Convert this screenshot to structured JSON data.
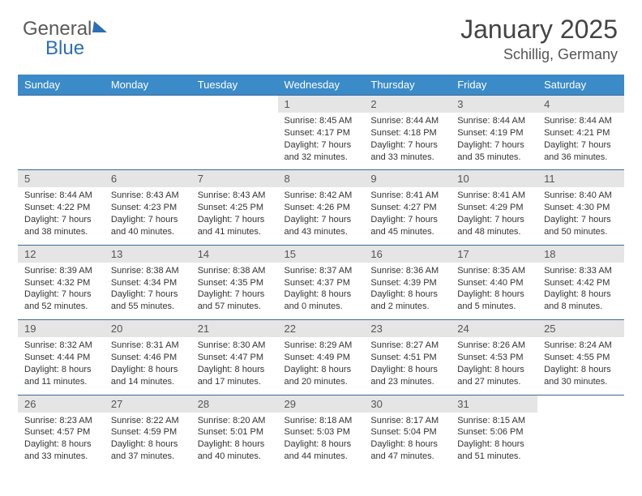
{
  "brand": {
    "part1": "General",
    "part2": "Blue"
  },
  "title": "January 2025",
  "location": "Schillig, Germany",
  "colors": {
    "header_bg": "#3b8bc9",
    "header_text": "#ffffff",
    "daynum_bg": "#e5e5e5",
    "daynum_text": "#555555",
    "rule": "#3b6a9a",
    "body_text": "#333333"
  },
  "weekdays": [
    "Sunday",
    "Monday",
    "Tuesday",
    "Wednesday",
    "Thursday",
    "Friday",
    "Saturday"
  ],
  "weeks": [
    [
      null,
      null,
      null,
      {
        "n": "1",
        "sr": "8:45 AM",
        "ss": "4:17 PM",
        "dl": "7 hours and 32 minutes."
      },
      {
        "n": "2",
        "sr": "8:44 AM",
        "ss": "4:18 PM",
        "dl": "7 hours and 33 minutes."
      },
      {
        "n": "3",
        "sr": "8:44 AM",
        "ss": "4:19 PM",
        "dl": "7 hours and 35 minutes."
      },
      {
        "n": "4",
        "sr": "8:44 AM",
        "ss": "4:21 PM",
        "dl": "7 hours and 36 minutes."
      }
    ],
    [
      {
        "n": "5",
        "sr": "8:44 AM",
        "ss": "4:22 PM",
        "dl": "7 hours and 38 minutes."
      },
      {
        "n": "6",
        "sr": "8:43 AM",
        "ss": "4:23 PM",
        "dl": "7 hours and 40 minutes."
      },
      {
        "n": "7",
        "sr": "8:43 AM",
        "ss": "4:25 PM",
        "dl": "7 hours and 41 minutes."
      },
      {
        "n": "8",
        "sr": "8:42 AM",
        "ss": "4:26 PM",
        "dl": "7 hours and 43 minutes."
      },
      {
        "n": "9",
        "sr": "8:41 AM",
        "ss": "4:27 PM",
        "dl": "7 hours and 45 minutes."
      },
      {
        "n": "10",
        "sr": "8:41 AM",
        "ss": "4:29 PM",
        "dl": "7 hours and 48 minutes."
      },
      {
        "n": "11",
        "sr": "8:40 AM",
        "ss": "4:30 PM",
        "dl": "7 hours and 50 minutes."
      }
    ],
    [
      {
        "n": "12",
        "sr": "8:39 AM",
        "ss": "4:32 PM",
        "dl": "7 hours and 52 minutes."
      },
      {
        "n": "13",
        "sr": "8:38 AM",
        "ss": "4:34 PM",
        "dl": "7 hours and 55 minutes."
      },
      {
        "n": "14",
        "sr": "8:38 AM",
        "ss": "4:35 PM",
        "dl": "7 hours and 57 minutes."
      },
      {
        "n": "15",
        "sr": "8:37 AM",
        "ss": "4:37 PM",
        "dl": "8 hours and 0 minutes."
      },
      {
        "n": "16",
        "sr": "8:36 AM",
        "ss": "4:39 PM",
        "dl": "8 hours and 2 minutes."
      },
      {
        "n": "17",
        "sr": "8:35 AM",
        "ss": "4:40 PM",
        "dl": "8 hours and 5 minutes."
      },
      {
        "n": "18",
        "sr": "8:33 AM",
        "ss": "4:42 PM",
        "dl": "8 hours and 8 minutes."
      }
    ],
    [
      {
        "n": "19",
        "sr": "8:32 AM",
        "ss": "4:44 PM",
        "dl": "8 hours and 11 minutes."
      },
      {
        "n": "20",
        "sr": "8:31 AM",
        "ss": "4:46 PM",
        "dl": "8 hours and 14 minutes."
      },
      {
        "n": "21",
        "sr": "8:30 AM",
        "ss": "4:47 PM",
        "dl": "8 hours and 17 minutes."
      },
      {
        "n": "22",
        "sr": "8:29 AM",
        "ss": "4:49 PM",
        "dl": "8 hours and 20 minutes."
      },
      {
        "n": "23",
        "sr": "8:27 AM",
        "ss": "4:51 PM",
        "dl": "8 hours and 23 minutes."
      },
      {
        "n": "24",
        "sr": "8:26 AM",
        "ss": "4:53 PM",
        "dl": "8 hours and 27 minutes."
      },
      {
        "n": "25",
        "sr": "8:24 AM",
        "ss": "4:55 PM",
        "dl": "8 hours and 30 minutes."
      }
    ],
    [
      {
        "n": "26",
        "sr": "8:23 AM",
        "ss": "4:57 PM",
        "dl": "8 hours and 33 minutes."
      },
      {
        "n": "27",
        "sr": "8:22 AM",
        "ss": "4:59 PM",
        "dl": "8 hours and 37 minutes."
      },
      {
        "n": "28",
        "sr": "8:20 AM",
        "ss": "5:01 PM",
        "dl": "8 hours and 40 minutes."
      },
      {
        "n": "29",
        "sr": "8:18 AM",
        "ss": "5:03 PM",
        "dl": "8 hours and 44 minutes."
      },
      {
        "n": "30",
        "sr": "8:17 AM",
        "ss": "5:04 PM",
        "dl": "8 hours and 47 minutes."
      },
      {
        "n": "31",
        "sr": "8:15 AM",
        "ss": "5:06 PM",
        "dl": "8 hours and 51 minutes."
      },
      null
    ]
  ],
  "labels": {
    "sunrise": "Sunrise: ",
    "sunset": "Sunset: ",
    "daylight": "Daylight: "
  }
}
